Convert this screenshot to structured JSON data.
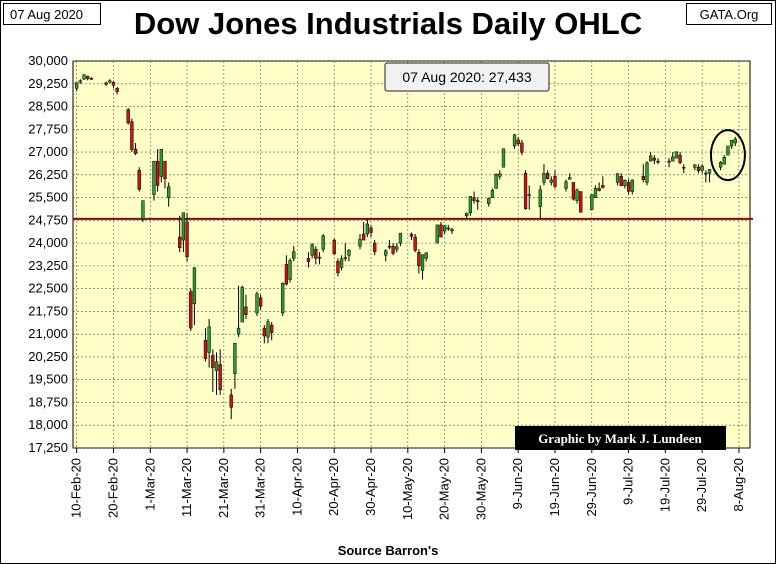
{
  "header": {
    "date": "07 Aug 2020",
    "source_site": "GATA.Org"
  },
  "footer": {
    "source": "Source Barron's"
  },
  "chart_data": {
    "type": "ohlc-candlestick",
    "title": "Dow Jones Industrials Daily OHLC",
    "annotation": "07 Aug 2020: 27,433",
    "credit": "Graphic by Mark J. Lundeen",
    "ylim": [
      17250,
      30000
    ],
    "y_ticks": [
      "30,000",
      "29,250",
      "28,500",
      "27,750",
      "27,000",
      "26,250",
      "25,500",
      "24,750",
      "24,000",
      "23,250",
      "22,500",
      "21,750",
      "21,000",
      "20,250",
      "19,500",
      "18,750",
      "18,000",
      "17,250"
    ],
    "y_tick_values": [
      30000,
      29250,
      28500,
      27750,
      27000,
      26250,
      25500,
      24750,
      24000,
      23250,
      22500,
      21750,
      21000,
      20250,
      19500,
      18750,
      18000,
      17250
    ],
    "x_ticks": [
      "10-Feb-20",
      "20-Feb-20",
      "1-Mar-20",
      "11-Mar-20",
      "21-Mar-20",
      "31-Mar-20",
      "10-Apr-20",
      "20-Apr-20",
      "30-Apr-20",
      "10-May-20",
      "20-May-20",
      "30-May-20",
      "9-Jun-20",
      "19-Jun-20",
      "29-Jun-20",
      "9-Jul-20",
      "19-Jul-20",
      "29-Jul-20",
      "8-Aug-20"
    ],
    "x_tick_dates": [
      "2020-02-10",
      "2020-02-20",
      "2020-03-01",
      "2020-03-11",
      "2020-03-21",
      "2020-03-31",
      "2020-04-10",
      "2020-04-20",
      "2020-04-30",
      "2020-05-10",
      "2020-05-20",
      "2020-05-30",
      "2020-06-09",
      "2020-06-19",
      "2020-06-29",
      "2020-07-09",
      "2020-07-19",
      "2020-07-29",
      "2020-08-08"
    ],
    "x_range": [
      "2020-02-09",
      "2020-08-11"
    ],
    "reference_line": 24800,
    "highlight": {
      "date": "2020-08-05",
      "value": 26900
    },
    "colors": {
      "up": "#2aa02a",
      "down": "#cc1111",
      "plot_bg": "#ffffc8",
      "ref_line": "#8b0a0a",
      "grid": "#555555"
    },
    "grid": true,
    "candles": [
      {
        "date": "2020-02-10",
        "o": 29100,
        "h": 29300,
        "l": 29000,
        "c": 29280
      },
      {
        "date": "2020-02-11",
        "o": 29300,
        "h": 29400,
        "l": 29250,
        "c": 29350
      },
      {
        "date": "2020-02-12",
        "o": 29400,
        "h": 29560,
        "l": 29380,
        "c": 29550
      },
      {
        "date": "2020-02-13",
        "o": 29500,
        "h": 29520,
        "l": 29360,
        "c": 29420
      },
      {
        "date": "2020-02-14",
        "o": 29430,
        "h": 29470,
        "l": 29380,
        "c": 29400
      },
      {
        "date": "2020-02-18",
        "o": 29280,
        "h": 29320,
        "l": 29180,
        "c": 29230
      },
      {
        "date": "2020-02-19",
        "o": 29300,
        "h": 29400,
        "l": 29280,
        "c": 29350
      },
      {
        "date": "2020-02-20",
        "o": 29300,
        "h": 29350,
        "l": 29100,
        "c": 29200
      },
      {
        "date": "2020-02-21",
        "o": 29100,
        "h": 29150,
        "l": 28900,
        "c": 28990
      },
      {
        "date": "2020-02-24",
        "o": 28400,
        "h": 28450,
        "l": 27900,
        "c": 27960
      },
      {
        "date": "2020-02-25",
        "o": 28000,
        "h": 28100,
        "l": 27000,
        "c": 27080
      },
      {
        "date": "2020-02-26",
        "o": 27100,
        "h": 27300,
        "l": 26900,
        "c": 26950
      },
      {
        "date": "2020-02-27",
        "o": 26400,
        "h": 26500,
        "l": 25700,
        "c": 25770
      },
      {
        "date": "2020-02-28",
        "o": 24800,
        "h": 25400,
        "l": 24700,
        "c": 25400
      },
      {
        "date": "2020-03-02",
        "o": 25600,
        "h": 26700,
        "l": 25400,
        "c": 26700
      },
      {
        "date": "2020-03-03",
        "o": 26700,
        "h": 27100,
        "l": 25700,
        "c": 25900
      },
      {
        "date": "2020-03-04",
        "o": 26200,
        "h": 27100,
        "l": 26000,
        "c": 27090
      },
      {
        "date": "2020-03-05",
        "o": 26700,
        "h": 26700,
        "l": 25800,
        "c": 26120
      },
      {
        "date": "2020-03-06",
        "o": 25500,
        "h": 26000,
        "l": 25200,
        "c": 25860
      },
      {
        "date": "2020-03-09",
        "o": 24200,
        "h": 24900,
        "l": 23700,
        "c": 23850
      },
      {
        "date": "2020-03-10",
        "o": 24100,
        "h": 25000,
        "l": 23700,
        "c": 25000
      },
      {
        "date": "2020-03-11",
        "o": 24700,
        "h": 25000,
        "l": 23400,
        "c": 23550
      },
      {
        "date": "2020-03-12",
        "o": 22400,
        "h": 22500,
        "l": 21100,
        "c": 21200
      },
      {
        "date": "2020-03-13",
        "o": 22000,
        "h": 23200,
        "l": 21300,
        "c": 23190
      },
      {
        "date": "2020-03-16",
        "o": 20800,
        "h": 21200,
        "l": 20100,
        "c": 20190
      },
      {
        "date": "2020-03-17",
        "o": 20400,
        "h": 21500,
        "l": 19900,
        "c": 21240
      },
      {
        "date": "2020-03-18",
        "o": 20300,
        "h": 20500,
        "l": 19100,
        "c": 19900
      },
      {
        "date": "2020-03-19",
        "o": 19800,
        "h": 20400,
        "l": 19000,
        "c": 20090
      },
      {
        "date": "2020-03-20",
        "o": 20000,
        "h": 20500,
        "l": 19000,
        "c": 19170
      },
      {
        "date": "2020-03-23",
        "o": 19000,
        "h": 19200,
        "l": 18200,
        "c": 18590
      },
      {
        "date": "2020-03-24",
        "o": 19700,
        "h": 20700,
        "l": 19200,
        "c": 20700
      },
      {
        "date": "2020-03-25",
        "o": 21000,
        "h": 22600,
        "l": 20900,
        "c": 21200
      },
      {
        "date": "2020-03-26",
        "o": 21400,
        "h": 22600,
        "l": 21400,
        "c": 22550
      },
      {
        "date": "2020-03-27",
        "o": 21900,
        "h": 22300,
        "l": 21500,
        "c": 21640
      },
      {
        "date": "2020-03-30",
        "o": 21700,
        "h": 22400,
        "l": 21600,
        "c": 22330
      },
      {
        "date": "2020-03-31",
        "o": 22200,
        "h": 22300,
        "l": 21800,
        "c": 21920
      },
      {
        "date": "2020-04-01",
        "o": 21200,
        "h": 21300,
        "l": 20700,
        "c": 20940
      },
      {
        "date": "2020-04-02",
        "o": 20900,
        "h": 21500,
        "l": 20700,
        "c": 21410
      },
      {
        "date": "2020-04-03",
        "o": 21300,
        "h": 21400,
        "l": 20800,
        "c": 21050
      },
      {
        "date": "2020-04-06",
        "o": 21700,
        "h": 22700,
        "l": 21600,
        "c": 22680
      },
      {
        "date": "2020-04-07",
        "o": 23300,
        "h": 23600,
        "l": 22600,
        "c": 22650
      },
      {
        "date": "2020-04-08",
        "o": 22800,
        "h": 23500,
        "l": 22700,
        "c": 23430
      },
      {
        "date": "2020-04-09",
        "o": 23500,
        "h": 23900,
        "l": 23400,
        "c": 23720
      },
      {
        "date": "2020-04-13",
        "o": 23500,
        "h": 23700,
        "l": 23200,
        "c": 23390
      },
      {
        "date": "2020-04-14",
        "o": 23600,
        "h": 24000,
        "l": 23500,
        "c": 23950
      },
      {
        "date": "2020-04-15",
        "o": 23800,
        "h": 23900,
        "l": 23300,
        "c": 23500
      },
      {
        "date": "2020-04-16",
        "o": 23500,
        "h": 23700,
        "l": 23300,
        "c": 23540
      },
      {
        "date": "2020-04-17",
        "o": 23800,
        "h": 24300,
        "l": 23700,
        "c": 24240
      },
      {
        "date": "2020-04-20",
        "o": 24100,
        "h": 24150,
        "l": 23600,
        "c": 23650
      },
      {
        "date": "2020-04-21",
        "o": 23400,
        "h": 23500,
        "l": 22900,
        "c": 23020
      },
      {
        "date": "2020-04-22",
        "o": 23200,
        "h": 23600,
        "l": 23100,
        "c": 23480
      },
      {
        "date": "2020-04-23",
        "o": 23500,
        "h": 24000,
        "l": 23400,
        "c": 23520
      },
      {
        "date": "2020-04-24",
        "o": 23600,
        "h": 23800,
        "l": 23400,
        "c": 23770
      },
      {
        "date": "2020-04-27",
        "o": 23900,
        "h": 24300,
        "l": 23800,
        "c": 24130
      },
      {
        "date": "2020-04-28",
        "o": 24300,
        "h": 24700,
        "l": 24100,
        "c": 24100
      },
      {
        "date": "2020-04-29",
        "o": 24300,
        "h": 24800,
        "l": 24200,
        "c": 24630
      },
      {
        "date": "2020-04-30",
        "o": 24500,
        "h": 24600,
        "l": 24200,
        "c": 24350
      },
      {
        "date": "2020-05-01",
        "o": 24000,
        "h": 24100,
        "l": 23600,
        "c": 23720
      },
      {
        "date": "2020-05-04",
        "o": 23600,
        "h": 23800,
        "l": 23400,
        "c": 23750
      },
      {
        "date": "2020-05-05",
        "o": 23900,
        "h": 24100,
        "l": 23800,
        "c": 23880
      },
      {
        "date": "2020-05-06",
        "o": 23900,
        "h": 24000,
        "l": 23600,
        "c": 23660
      },
      {
        "date": "2020-05-07",
        "o": 23800,
        "h": 24000,
        "l": 23700,
        "c": 23880
      },
      {
        "date": "2020-05-08",
        "o": 24000,
        "h": 24300,
        "l": 23900,
        "c": 24330
      },
      {
        "date": "2020-05-11",
        "o": 24300,
        "h": 24350,
        "l": 24100,
        "c": 24220
      },
      {
        "date": "2020-05-12",
        "o": 24200,
        "h": 24300,
        "l": 23700,
        "c": 23760
      },
      {
        "date": "2020-05-13",
        "o": 23700,
        "h": 23800,
        "l": 23000,
        "c": 23250
      },
      {
        "date": "2020-05-14",
        "o": 23100,
        "h": 23600,
        "l": 22800,
        "c": 23620
      },
      {
        "date": "2020-05-15",
        "o": 23500,
        "h": 23700,
        "l": 23400,
        "c": 23680
      },
      {
        "date": "2020-05-18",
        "o": 24000,
        "h": 24600,
        "l": 24000,
        "c": 24600
      },
      {
        "date": "2020-05-19",
        "o": 24600,
        "h": 24700,
        "l": 24200,
        "c": 24200
      },
      {
        "date": "2020-05-20",
        "o": 24400,
        "h": 24600,
        "l": 24300,
        "c": 24580
      },
      {
        "date": "2020-05-21",
        "o": 24500,
        "h": 24600,
        "l": 24400,
        "c": 24470
      },
      {
        "date": "2020-05-22",
        "o": 24400,
        "h": 24500,
        "l": 24300,
        "c": 24460
      },
      {
        "date": "2020-05-26",
        "o": 24900,
        "h": 25000,
        "l": 24800,
        "c": 24990
      },
      {
        "date": "2020-05-27",
        "o": 25000,
        "h": 25500,
        "l": 24900,
        "c": 25540
      },
      {
        "date": "2020-05-28",
        "o": 25500,
        "h": 25700,
        "l": 25300,
        "c": 25400
      },
      {
        "date": "2020-05-29",
        "o": 25400,
        "h": 25500,
        "l": 25100,
        "c": 25380
      },
      {
        "date": "2020-06-01",
        "o": 25300,
        "h": 25500,
        "l": 25200,
        "c": 25480
      },
      {
        "date": "2020-06-02",
        "o": 25500,
        "h": 25800,
        "l": 25500,
        "c": 25740
      },
      {
        "date": "2020-06-03",
        "o": 25800,
        "h": 26300,
        "l": 25800,
        "c": 26270
      },
      {
        "date": "2020-06-04",
        "o": 26200,
        "h": 26400,
        "l": 26100,
        "c": 26280
      },
      {
        "date": "2020-06-05",
        "o": 26500,
        "h": 27100,
        "l": 26500,
        "c": 27110
      },
      {
        "date": "2020-06-08",
        "o": 27200,
        "h": 27600,
        "l": 27100,
        "c": 27570
      },
      {
        "date": "2020-06-09",
        "o": 27400,
        "h": 27500,
        "l": 27200,
        "c": 27270
      },
      {
        "date": "2020-06-10",
        "o": 27300,
        "h": 27400,
        "l": 26900,
        "c": 26990
      },
      {
        "date": "2020-06-11",
        "o": 26300,
        "h": 26400,
        "l": 25100,
        "c": 25130
      },
      {
        "date": "2020-06-12",
        "o": 25600,
        "h": 25900,
        "l": 25100,
        "c": 25600
      },
      {
        "date": "2020-06-15",
        "o": 25200,
        "h": 25900,
        "l": 24800,
        "c": 25760
      },
      {
        "date": "2020-06-16",
        "o": 26000,
        "h": 26600,
        "l": 25900,
        "c": 26290
      },
      {
        "date": "2020-06-17",
        "o": 26300,
        "h": 26400,
        "l": 26100,
        "c": 26120
      },
      {
        "date": "2020-06-18",
        "o": 26000,
        "h": 26200,
        "l": 25900,
        "c": 26080
      },
      {
        "date": "2020-06-19",
        "o": 26200,
        "h": 26400,
        "l": 25800,
        "c": 25870
      },
      {
        "date": "2020-06-22",
        "o": 25800,
        "h": 26100,
        "l": 25700,
        "c": 26020
      },
      {
        "date": "2020-06-23",
        "o": 26100,
        "h": 26300,
        "l": 26100,
        "c": 26160
      },
      {
        "date": "2020-06-24",
        "o": 26000,
        "h": 26000,
        "l": 25400,
        "c": 25450
      },
      {
        "date": "2020-06-25",
        "o": 25400,
        "h": 25800,
        "l": 25300,
        "c": 25750
      },
      {
        "date": "2020-06-26",
        "o": 25700,
        "h": 25700,
        "l": 25000,
        "c": 25020
      },
      {
        "date": "2020-06-29",
        "o": 25100,
        "h": 25600,
        "l": 25100,
        "c": 25600
      },
      {
        "date": "2020-06-30",
        "o": 25500,
        "h": 25900,
        "l": 25500,
        "c": 25810
      },
      {
        "date": "2020-07-01",
        "o": 25800,
        "h": 26000,
        "l": 25700,
        "c": 25730
      },
      {
        "date": "2020-07-02",
        "o": 25900,
        "h": 26200,
        "l": 25800,
        "c": 25830
      },
      {
        "date": "2020-07-06",
        "o": 26000,
        "h": 26300,
        "l": 25900,
        "c": 26290
      },
      {
        "date": "2020-07-07",
        "o": 26200,
        "h": 26300,
        "l": 25900,
        "c": 25890
      },
      {
        "date": "2020-07-08",
        "o": 25900,
        "h": 26100,
        "l": 25800,
        "c": 26070
      },
      {
        "date": "2020-07-09",
        "o": 26000,
        "h": 26100,
        "l": 25600,
        "c": 25710
      },
      {
        "date": "2020-07-10",
        "o": 25700,
        "h": 26100,
        "l": 25600,
        "c": 26080
      },
      {
        "date": "2020-07-13",
        "o": 26200,
        "h": 26600,
        "l": 26000,
        "c": 26090
      },
      {
        "date": "2020-07-14",
        "o": 26000,
        "h": 26700,
        "l": 25900,
        "c": 26640
      },
      {
        "date": "2020-07-15",
        "o": 26700,
        "h": 27000,
        "l": 26700,
        "c": 26870
      },
      {
        "date": "2020-07-16",
        "o": 26800,
        "h": 26900,
        "l": 26600,
        "c": 26730
      },
      {
        "date": "2020-07-17",
        "o": 26700,
        "h": 26800,
        "l": 26600,
        "c": 26670
      },
      {
        "date": "2020-07-20",
        "o": 26700,
        "h": 26800,
        "l": 26500,
        "c": 26680
      },
      {
        "date": "2020-07-21",
        "o": 26700,
        "h": 27000,
        "l": 26700,
        "c": 26840
      },
      {
        "date": "2020-07-22",
        "o": 26800,
        "h": 27000,
        "l": 26800,
        "c": 27010
      },
      {
        "date": "2020-07-23",
        "o": 26900,
        "h": 27000,
        "l": 26600,
        "c": 26650
      },
      {
        "date": "2020-07-24",
        "o": 26500,
        "h": 26600,
        "l": 26300,
        "c": 26470
      },
      {
        "date": "2020-07-27",
        "o": 26500,
        "h": 26600,
        "l": 26400,
        "c": 26580
      },
      {
        "date": "2020-07-28",
        "o": 26500,
        "h": 26600,
        "l": 26300,
        "c": 26380
      },
      {
        "date": "2020-07-29",
        "o": 26400,
        "h": 26600,
        "l": 26300,
        "c": 26540
      },
      {
        "date": "2020-07-30",
        "o": 26300,
        "h": 26400,
        "l": 26000,
        "c": 26310
      },
      {
        "date": "2020-07-31",
        "o": 26300,
        "h": 26400,
        "l": 26000,
        "c": 26430
      },
      {
        "date": "2020-08-03",
        "o": 26500,
        "h": 26700,
        "l": 26400,
        "c": 26660
      },
      {
        "date": "2020-08-04",
        "o": 26600,
        "h": 26900,
        "l": 26600,
        "c": 26830
      },
      {
        "date": "2020-08-05",
        "o": 26900,
        "h": 27200,
        "l": 26900,
        "c": 27200
      },
      {
        "date": "2020-08-06",
        "o": 27200,
        "h": 27400,
        "l": 27100,
        "c": 27390
      },
      {
        "date": "2020-08-07",
        "o": 27300,
        "h": 27500,
        "l": 27200,
        "c": 27430
      }
    ]
  }
}
